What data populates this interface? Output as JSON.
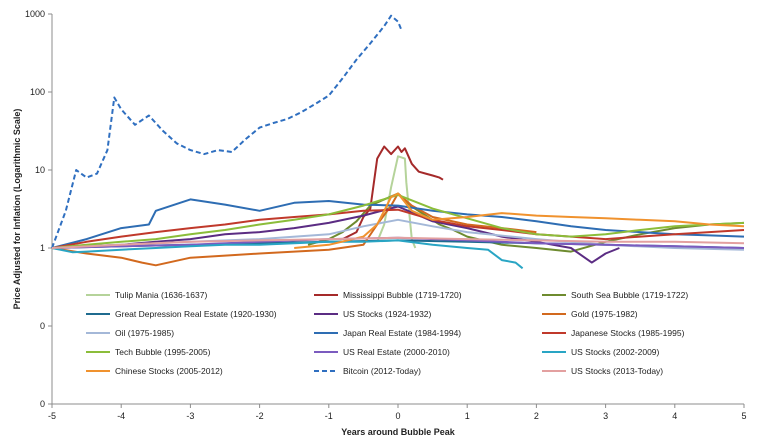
{
  "chart_data": {
    "type": "line",
    "xlabel": "Years around Bubble Peak",
    "ylabel": "Price Adjusted for Inflation (Logarithmic Scale)",
    "x_ticks": [
      "-5",
      "-4",
      "-3",
      "-2",
      "-1",
      "0",
      "1",
      "2",
      "3",
      "4",
      "5"
    ],
    "y_ticks": [
      "1000",
      "100",
      "10",
      "1",
      "0",
      "0"
    ],
    "xlim": [
      -5,
      5
    ],
    "y_scale": "log",
    "grid": false,
    "legend_placement": "bottom-inside, 3 columns",
    "series": [
      {
        "name": "Tulip Mania (1636-1637)",
        "color": "#b5d39a",
        "dashed": false,
        "x": [
          -0.3,
          -0.2,
          -0.1,
          0,
          0.05,
          0.1,
          0.12,
          0.2,
          0.25
        ],
        "y": [
          1.2,
          2.0,
          6.0,
          15,
          14.5,
          14,
          7,
          1.3,
          1.0
        ]
      },
      {
        "name": "Mississippi Bubble (1719-1720)",
        "color": "#a52a2a",
        "dashed": false,
        "x": [
          -0.8,
          -0.6,
          -0.5,
          -0.4,
          -0.3,
          -0.2,
          -0.1,
          0,
          0.05,
          0.1,
          0.2,
          0.3,
          0.4,
          0.5,
          0.6,
          0.65
        ],
        "y": [
          1.3,
          1.6,
          2.5,
          3.2,
          14,
          20,
          16,
          20,
          17,
          19,
          12,
          9.5,
          9,
          8.5,
          8,
          7.5
        ]
      },
      {
        "name": "South Sea Bubble (1719-1722)",
        "color": "#6e8b2f",
        "dashed": false,
        "x": [
          -1.3,
          -1.0,
          -0.8,
          -0.6,
          -0.4,
          -0.2,
          0,
          0.2,
          0.4,
          0.6,
          0.8,
          1.0,
          1.5,
          2.0,
          2.5,
          3.0,
          3.5,
          4.0,
          4.5,
          5.0
        ],
        "y": [
          1.1,
          1.3,
          1.6,
          2.2,
          3.5,
          4.2,
          5.0,
          3.4,
          2.6,
          2.0,
          1.7,
          1.4,
          1.1,
          1.0,
          0.9,
          1.2,
          1.5,
          1.8,
          2.0,
          2.1
        ]
      },
      {
        "name": "Great Depression Real Estate (1920-1930)",
        "color": "#1f6b8f",
        "dashed": false,
        "x": [
          -5,
          -4,
          -3,
          -2,
          -1,
          0,
          1,
          2,
          3,
          4,
          5
        ],
        "y": [
          1.0,
          1.05,
          1.1,
          1.15,
          1.2,
          1.25,
          1.2,
          1.15,
          1.1,
          1.05,
          1.0
        ]
      },
      {
        "name": "US Stocks (1924-1932)",
        "color": "#5b2c83",
        "dashed": false,
        "x": [
          -5,
          -4.5,
          -4,
          -3.5,
          -3,
          -2.5,
          -2,
          -1.5,
          -1,
          -0.5,
          0,
          0.5,
          1,
          1.5,
          2,
          2.5,
          2.8,
          3.0,
          3.2
        ],
        "y": [
          1.0,
          1.05,
          1.1,
          1.2,
          1.3,
          1.5,
          1.6,
          1.8,
          2.1,
          2.6,
          3.4,
          2.2,
          1.8,
          1.4,
          1.2,
          1.0,
          0.65,
          0.85,
          1.0
        ]
      },
      {
        "name": "Gold (1975-1982)",
        "color": "#d2691e",
        "dashed": false,
        "x": [
          -5,
          -4.5,
          -4,
          -3.7,
          -3.5,
          -3,
          -2.5,
          -2,
          -1.5,
          -1,
          -0.5,
          -0.3,
          -0.1,
          0,
          0.2,
          0.5,
          1,
          1.5,
          2
        ],
        "y": [
          1.0,
          0.85,
          0.75,
          0.65,
          0.6,
          0.75,
          0.8,
          0.85,
          0.9,
          0.95,
          1.1,
          2.0,
          3.5,
          5.0,
          3.5,
          2.5,
          2.0,
          1.8,
          1.6
        ]
      },
      {
        "name": "Oil (1975-1985)",
        "color": "#a4b8d8",
        "dashed": false,
        "x": [
          -5,
          -4,
          -3,
          -2,
          -1,
          -0.5,
          0,
          0.5,
          1,
          2,
          3,
          4,
          5
        ],
        "y": [
          1.0,
          1.1,
          1.2,
          1.3,
          1.5,
          1.9,
          2.3,
          1.9,
          1.6,
          1.3,
          1.1,
          1.0,
          0.95
        ]
      },
      {
        "name": "Japan Real Estate (1984-1994)",
        "color": "#2e6db3",
        "dashed": false,
        "x": [
          -5,
          -4.5,
          -4,
          -3.6,
          -3.5,
          -3,
          -2.5,
          -2,
          -1.5,
          -1,
          -0.5,
          0,
          0.5,
          1,
          1.5,
          2,
          2.5,
          3,
          3.5,
          4,
          4.5,
          5
        ],
        "y": [
          1.0,
          1.3,
          1.8,
          2.0,
          3.0,
          4.2,
          3.6,
          3.0,
          3.8,
          4.0,
          3.6,
          3.5,
          3.0,
          2.7,
          2.5,
          2.2,
          1.9,
          1.7,
          1.6,
          1.5,
          1.45,
          1.4
        ]
      },
      {
        "name": "Japanese Stocks (1985-1995)",
        "color": "#c0392b",
        "dashed": false,
        "x": [
          -5,
          -4.5,
          -4,
          -3.5,
          -3,
          -2.5,
          -2,
          -1.5,
          -1,
          -0.5,
          0,
          0.5,
          1,
          1.5,
          2,
          2.5,
          3,
          3.5,
          4,
          4.5,
          5
        ],
        "y": [
          1.0,
          1.2,
          1.4,
          1.6,
          1.8,
          2.0,
          2.3,
          2.5,
          2.7,
          3.0,
          3.1,
          2.3,
          1.9,
          1.7,
          1.5,
          1.4,
          1.3,
          1.4,
          1.5,
          1.6,
          1.7
        ]
      },
      {
        "name": "Tech Bubble (1995-2005)",
        "color": "#8bbd3a",
        "dashed": false,
        "x": [
          -5,
          -4.5,
          -4,
          -3.5,
          -3,
          -2.5,
          -2,
          -1.5,
          -1,
          -0.5,
          0,
          0.5,
          1,
          1.5,
          2,
          2.5,
          3,
          3.5,
          4,
          4.5,
          5
        ],
        "y": [
          1.0,
          1.1,
          1.2,
          1.3,
          1.5,
          1.7,
          2.0,
          2.3,
          2.7,
          3.5,
          4.8,
          3.2,
          2.4,
          1.8,
          1.5,
          1.4,
          1.5,
          1.7,
          1.9,
          2.0,
          2.1
        ]
      },
      {
        "name": "US Real Estate (2000-2010)",
        "color": "#7b5bbf",
        "dashed": false,
        "x": [
          -5,
          -4,
          -3,
          -2,
          -1,
          0,
          1,
          2,
          3,
          4,
          5
        ],
        "y": [
          1.0,
          1.05,
          1.1,
          1.2,
          1.3,
          1.35,
          1.25,
          1.15,
          1.1,
          1.05,
          1.0
        ]
      },
      {
        "name": "US Stocks (2002-2009)",
        "color": "#29a5c4",
        "dashed": false,
        "x": [
          -5,
          -4.7,
          -4.5,
          -4,
          -3.5,
          -3,
          -2.5,
          -2,
          -1.5,
          -1,
          -0.5,
          0,
          0.5,
          1,
          1.3,
          1.5,
          1.7,
          1.8
        ],
        "y": [
          1.0,
          0.88,
          0.9,
          0.95,
          1.0,
          1.05,
          1.1,
          1.1,
          1.15,
          1.2,
          1.2,
          1.25,
          1.1,
          1.0,
          0.95,
          0.7,
          0.65,
          0.55
        ]
      },
      {
        "name": "Chinese Stocks (2005-2012)",
        "color": "#f0922e",
        "dashed": false,
        "x": [
          -1.5,
          -1.0,
          -0.5,
          -0.3,
          -0.2,
          -0.1,
          0,
          0.2,
          0.5,
          1,
          1.5,
          2,
          2.5,
          3,
          3.5,
          4,
          4.5,
          5
        ],
        "y": [
          1.0,
          1.1,
          1.4,
          2.0,
          3.0,
          4.5,
          5.0,
          3.0,
          2.3,
          2.5,
          2.8,
          2.6,
          2.5,
          2.4,
          2.3,
          2.2,
          2.0,
          1.9
        ]
      },
      {
        "name": "Bitcoin (2012-Today)",
        "color": "#2f6fc0",
        "dashed": true,
        "x": [
          -5,
          -4.8,
          -4.65,
          -4.5,
          -4.35,
          -4.2,
          -4.1,
          -4.0,
          -3.8,
          -3.6,
          -3.4,
          -3.2,
          -3.0,
          -2.8,
          -2.6,
          -2.4,
          -2.2,
          -2.0,
          -1.8,
          -1.6,
          -1.4,
          -1.2,
          -1.0,
          -0.8,
          -0.6,
          -0.4,
          -0.2,
          -0.1,
          0,
          0.05
        ],
        "y": [
          1,
          3,
          10,
          8,
          9,
          18,
          85,
          60,
          38,
          50,
          32,
          22,
          18,
          16,
          18,
          17,
          25,
          35,
          40,
          45,
          55,
          70,
          90,
          150,
          260,
          420,
          700,
          950,
          800,
          620
        ]
      },
      {
        "name": "US Stocks (2013-Today)",
        "color": "#e3a0a0",
        "dashed": false,
        "x": [
          -5,
          -4,
          -3,
          -2,
          -1,
          0,
          1,
          2,
          3,
          4,
          5
        ],
        "y": [
          1.0,
          1.1,
          1.2,
          1.25,
          1.3,
          1.35,
          1.3,
          1.25,
          1.2,
          1.2,
          1.15
        ]
      }
    ]
  }
}
